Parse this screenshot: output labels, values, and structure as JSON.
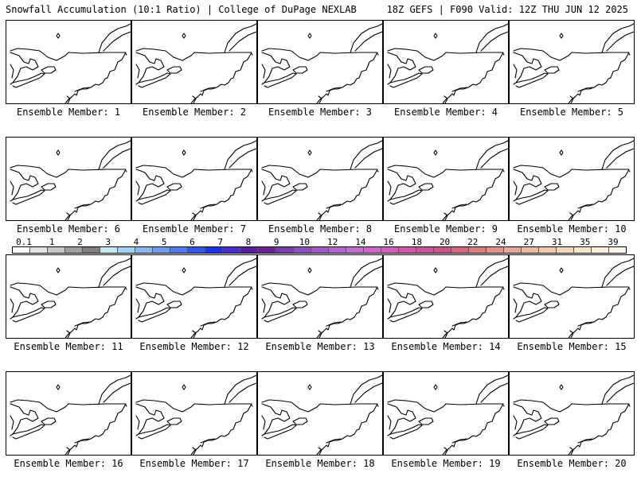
{
  "header": {
    "left": "Snowfall Accumulation (10:1 Ratio) | College of DuPage NEXLAB",
    "right": "18Z GEFS | F090 Valid: 12Z THU JUN 12 2025"
  },
  "members": [
    "Ensemble Member: 1",
    "Ensemble Member: 2",
    "Ensemble Member: 3",
    "Ensemble Member: 4",
    "Ensemble Member: 5",
    "Ensemble Member: 6",
    "Ensemble Member: 7",
    "Ensemble Member: 8",
    "Ensemble Member: 9",
    "Ensemble Member: 10",
    "Ensemble Member: 11",
    "Ensemble Member: 12",
    "Ensemble Member: 13",
    "Ensemble Member: 14",
    "Ensemble Member: 15",
    "Ensemble Member: 16",
    "Ensemble Member: 17",
    "Ensemble Member: 18",
    "Ensemble Member: 19",
    "Ensemble Member: 20"
  ],
  "colorbar": {
    "ticks": [
      "0.1",
      "1",
      "2",
      "3",
      "4",
      "5",
      "6",
      "7",
      "8",
      "9",
      "10",
      "12",
      "14",
      "16",
      "18",
      "20",
      "22",
      "24",
      "27",
      "31",
      "35",
      "39"
    ],
    "colors": [
      "#ffffff",
      "#e4e4e4",
      "#c8c8c8",
      "#a0a0a0",
      "#808080",
      "#c4eaf4",
      "#a2d4f6",
      "#86b8f6",
      "#6a9cf2",
      "#4c7cf0",
      "#2c58ee",
      "#1a32f0",
      "#4a2cd4",
      "#5a1aa8",
      "#6a1e9a",
      "#7a3ab0",
      "#8e4ec6",
      "#a456d2",
      "#b662d6",
      "#c66ad6",
      "#d264cc",
      "#d85ac0",
      "#d854b0",
      "#d4509e",
      "#d4508a",
      "#d8667e",
      "#de7e84",
      "#e4928c",
      "#eaa694",
      "#eeb89e",
      "#f2c8aa",
      "#f6d6b8",
      "#f8e2c8",
      "#fcecd8",
      "#fef6ea"
    ]
  }
}
